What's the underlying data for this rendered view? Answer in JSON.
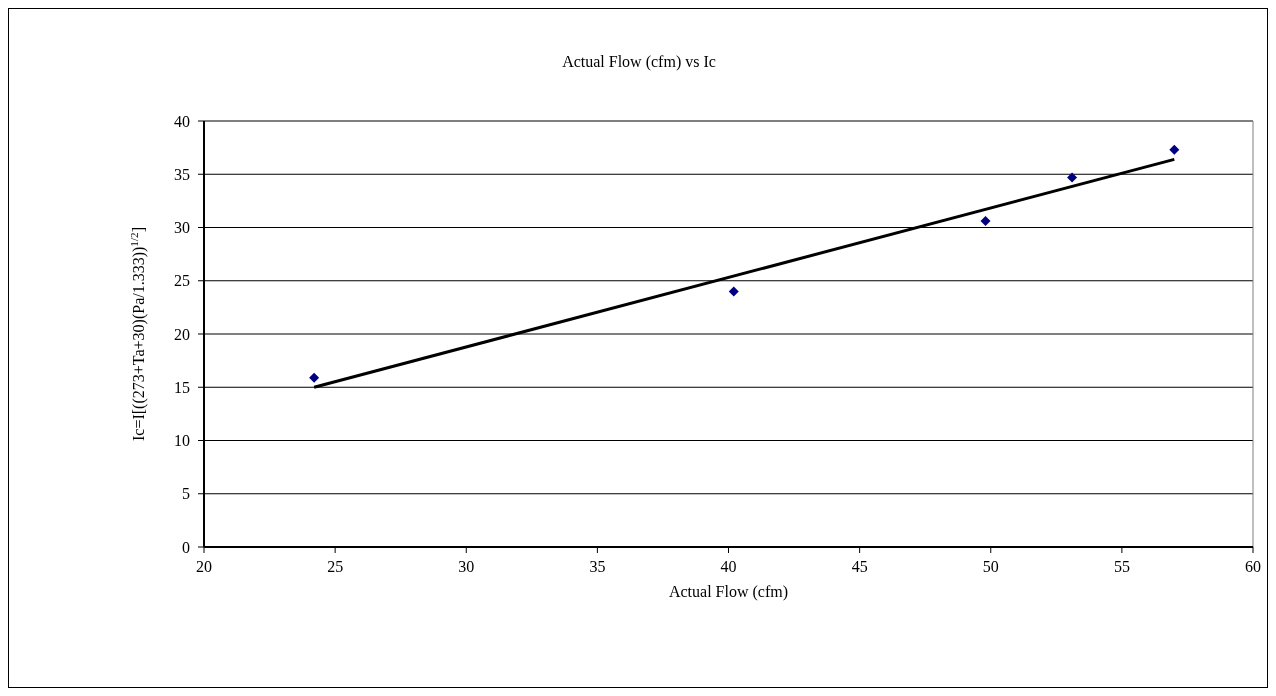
{
  "chart_data": {
    "type": "scatter",
    "title": "Actual Flow (cfm) vs Ic",
    "xlabel": "Actual Flow (cfm)",
    "ylabel": "Ic=I[((273+Ta+30)(Pa/1.333))$^{1/2}$]",
    "xlim": [
      20,
      60
    ],
    "xticks": [
      20,
      25,
      30,
      35,
      40,
      45,
      50,
      55,
      60
    ],
    "ylim": [
      0,
      40
    ],
    "yticks": [
      0,
      5,
      10,
      15,
      20,
      25,
      30,
      35,
      40
    ],
    "grid": "y",
    "marker": "diamond",
    "series": [
      {
        "color": "#000080",
        "x": [
          24.2,
          40.2,
          49.8,
          53.1,
          57.0
        ],
        "values": [
          15.9,
          24.0,
          30.6,
          34.7,
          37.3
        ]
      },
      {
        "type": "line",
        "color": "#000000",
        "marker": "none",
        "x": [
          24.2,
          57.0
        ],
        "values": [
          15.0,
          36.4
        ]
      }
    ]
  }
}
